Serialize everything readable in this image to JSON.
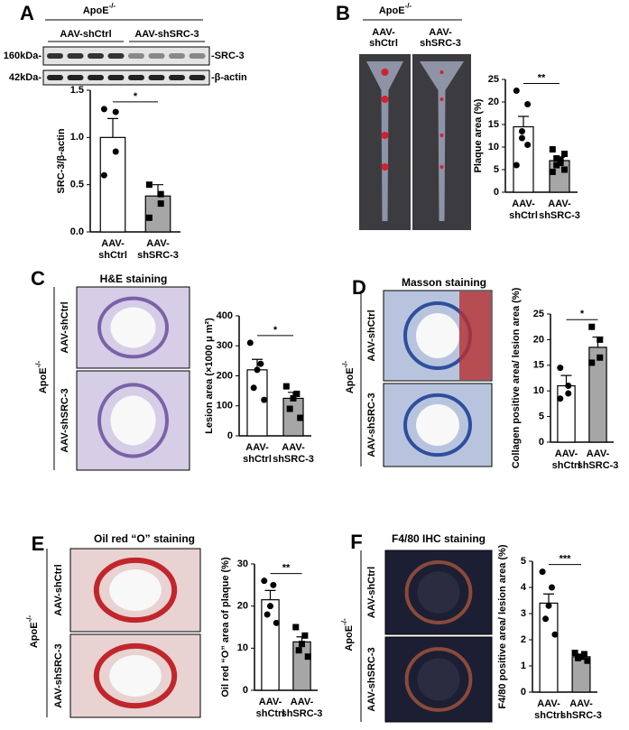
{
  "chart_data": [
    {
      "type": "bar",
      "panel": "A",
      "header": {
        "base": "ApoE",
        "sup": "-/-"
      },
      "groups": [
        "AAV-shCtrl",
        "AAV-shSRC-3"
      ],
      "blot_markers": [
        "160kDa-",
        "42kDa-"
      ],
      "blot_targets": [
        "-SRC-3",
        "-β-actin"
      ],
      "ylabel": "SRC-3/β-actin",
      "categories": [
        [
          "AAV-",
          "shCtrl"
        ],
        [
          "AAV-",
          "shSRC-3"
        ]
      ],
      "values": [
        1.0,
        0.38
      ],
      "errors": [
        0.2,
        0.12
      ],
      "points": [
        [
          1.3,
          1.27,
          0.85,
          0.6
        ],
        [
          0.5,
          0.4,
          0.3,
          0.15
        ]
      ],
      "colors": [
        "#ffffff",
        "#a6a6a6"
      ],
      "ylim": [
        0,
        1.5
      ],
      "yticks": [
        {
          "value": 0,
          "label": "0.0"
        },
        {
          "value": 0.5,
          "label": "0.5"
        },
        {
          "value": 1,
          "label": "1.0"
        },
        {
          "value": 1.5,
          "label": "1.5"
        }
      ],
      "significance": "*"
    },
    {
      "type": "bar",
      "panel": "B",
      "header": {
        "base": "ApoE",
        "sup": "-/-"
      },
      "image_labels": [
        [
          "AAV-",
          "shCtrl"
        ],
        [
          "AAV-",
          "shSRC-3"
        ]
      ],
      "ylabel": "Plaque area (%)",
      "categories": [
        [
          "AAV-",
          "shCtrl"
        ],
        [
          "AAV-",
          "shSRC-3"
        ]
      ],
      "values": [
        14.5,
        7
      ],
      "errors": [
        2.3,
        0.8
      ],
      "points": [
        [
          22.5,
          19.5,
          13.5,
          12,
          10.5,
          6
        ],
        [
          9.5,
          8.5,
          7.5,
          7,
          6.5,
          6,
          5,
          4.5
        ]
      ],
      "colors": [
        "#ffffff",
        "#a6a6a6"
      ],
      "ylim": [
        0,
        25
      ],
      "yticks": [
        0,
        5,
        10,
        15,
        20,
        25
      ],
      "significance": "**"
    },
    {
      "type": "bar",
      "panel": "C",
      "title": "H&E staining",
      "header": {
        "base": "ApoE",
        "sup": "-/-"
      },
      "image_labels": [
        "AAV-shCtrl",
        "AAV-shSRC-3"
      ],
      "ylabel": "Lesion area (×1000 μ m²)",
      "categories": [
        [
          "AAV-",
          "shCtrl"
        ],
        [
          "AAV-",
          "shSRC-3"
        ]
      ],
      "values": [
        220,
        125
      ],
      "errors": [
        35,
        20
      ],
      "points": [
        [
          310,
          240,
          220,
          160,
          120
        ],
        [
          165,
          140,
          125,
          90,
          60
        ]
      ],
      "colors": [
        "#ffffff",
        "#a6a6a6"
      ],
      "ylim": [
        0,
        400
      ],
      "yticks": [
        0,
        100,
        200,
        300,
        400
      ],
      "significance": "*"
    },
    {
      "type": "bar",
      "panel": "D",
      "title": "Masson staining",
      "header": {
        "base": "ApoE",
        "sup": "-/-"
      },
      "image_labels": [
        "AAV-shCtrl",
        "AAV-shSRC-3"
      ],
      "ylabel": "Collagen positive area/ lesion area (%)",
      "categories": [
        [
          "AAV-",
          "shCtrl"
        ],
        [
          "AAV-",
          "shSRC-3"
        ]
      ],
      "values": [
        11,
        18.5
      ],
      "errors": [
        2,
        2
      ],
      "points": [
        [
          14.5,
          11,
          9.5,
          8.5
        ],
        [
          22.5,
          20,
          16.5,
          15.5
        ]
      ],
      "colors": [
        "#ffffff",
        "#a6a6a6"
      ],
      "ylim": [
        0,
        25
      ],
      "yticks": [
        0,
        5,
        10,
        15,
        20,
        25
      ],
      "significance": "*"
    },
    {
      "type": "bar",
      "panel": "E",
      "title": "Oil red “O” staining",
      "header": {
        "base": "ApoE",
        "sup": "-/-"
      },
      "image_labels": [
        "AAV-shCtrl",
        "AAV-shSRC-3"
      ],
      "ylabel": "Oil red “O” area of plaque (%)",
      "categories": [
        [
          "AAV-",
          "shCtrl"
        ],
        [
          "AAV-",
          "shSRC-3"
        ]
      ],
      "values": [
        21.5,
        11.5
      ],
      "errors": [
        2.2,
        1.2
      ],
      "points": [
        [
          26,
          25,
          20,
          18,
          16
        ],
        [
          15,
          13,
          11,
          9.5,
          8
        ]
      ],
      "colors": [
        "#ffffff",
        "#a6a6a6"
      ],
      "ylim": [
        0,
        30
      ],
      "yticks": [
        0,
        10,
        20,
        30
      ],
      "significance": "**"
    },
    {
      "type": "bar",
      "panel": "F",
      "title": "F4/80 IHC staining",
      "header": {
        "base": "ApoE",
        "sup": "-/-"
      },
      "image_labels": [
        "AAV-shCtrl",
        "AAV-shSRC-3"
      ],
      "ylabel": "F4/80 positive area/ lesion area (%)",
      "categories": [
        [
          "AAV-",
          "shCtrl"
        ],
        [
          "AAV-",
          "shSRC-3"
        ]
      ],
      "values": [
        3.4,
        1.35
      ],
      "errors": [
        0.35,
        0.1
      ],
      "points": [
        [
          4.6,
          4,
          3.3,
          2.8,
          2.2
        ],
        [
          1.5,
          1.45,
          1.35,
          1.3,
          1.2
        ]
      ],
      "colors": [
        "#ffffff",
        "#a6a6a6"
      ],
      "ylim": [
        0,
        5
      ],
      "yticks": [
        0,
        1,
        2,
        3,
        4,
        5
      ],
      "significance": "***"
    }
  ]
}
